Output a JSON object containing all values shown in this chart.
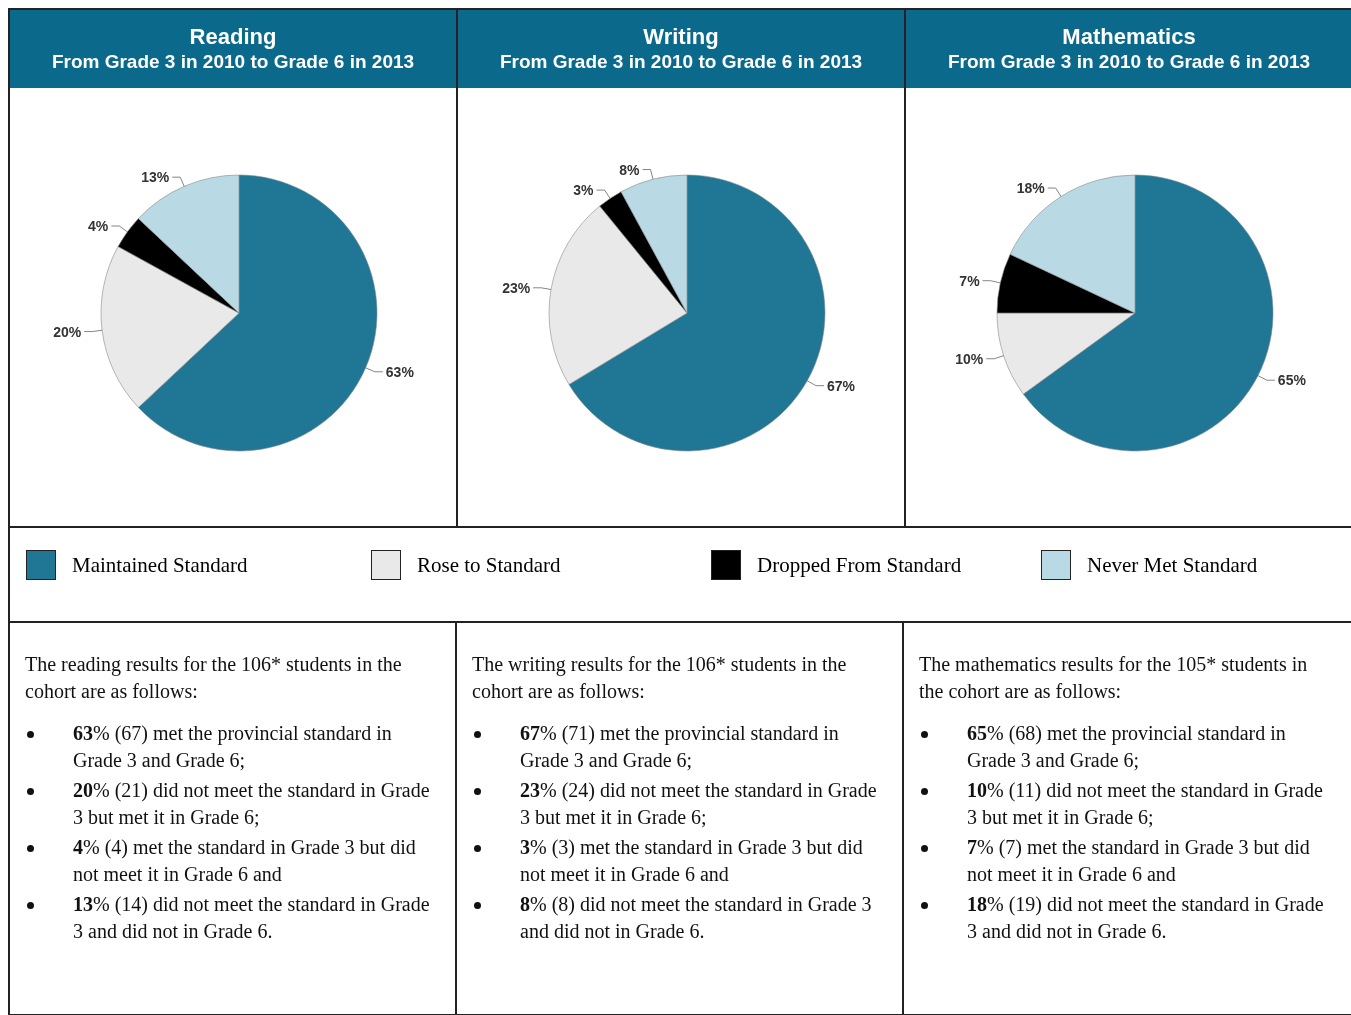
{
  "chart_data": [
    {
      "type": "pie",
      "title": "Reading",
      "subtitle": "From Grade 3 in 2010 to Grade 6 in 2013",
      "categories": [
        "Maintained Standard",
        "Rose to Standard",
        "Dropped From Standard",
        "Never Met Standard"
      ],
      "values": [
        63,
        20,
        4,
        13
      ],
      "value_labels": [
        "63%",
        "20%",
        "4%",
        "13%"
      ],
      "colors": [
        "#1f7695",
        "#e9e9e9",
        "#000000",
        "#b9d9e5"
      ],
      "legend": "bottom"
    },
    {
      "type": "pie",
      "title": "Writing",
      "subtitle": "From Grade 3 in 2010 to Grade 6 in 2013",
      "categories": [
        null,
        null,
        null,
        null
      ],
      "values": [
        67,
        23,
        3,
        8
      ],
      "value_labels": [
        "67%",
        "23%",
        "3%",
        "8%"
      ],
      "colors": [
        "#1f7695",
        "#e9e9e9",
        "#000000",
        "#b9d9e5"
      ]
    },
    {
      "type": "pie",
      "title": "Mathematics",
      "subtitle": "From Grade 3 in 2010 to Grade 6 in 2013",
      "categories": [
        null,
        null,
        null,
        null
      ],
      "values": [
        65,
        10,
        7,
        18
      ],
      "value_labels": [
        "65%",
        "10%",
        "7%",
        "18%"
      ],
      "colors": [
        "#1f7695",
        "#e9e9e9",
        "#000000",
        "#b9d9e5"
      ]
    },
    {
      "type": "other",
      "annotations": [
        "The reading results for the 106* students in the cohort are as follows:",
        "63% (67) met the provincial standard in Grade 3 and Grade 6;",
        "20% (21) did not meet the standard in Grade 3 but met it in Grade 6;",
        "4% (4) met the standard in Grade 3 but did not meet it in Grade 6 and",
        "13% (14) did not meet the standard in Grade 3 and did not in Grade 6."
      ]
    },
    {
      "type": "other",
      "annotations": [
        "The writing results for the 106* students in the cohort are as follows:",
        "67% (71) met the provincial standard in Grade 3 and Grade 6;",
        "23% (24) did not meet the standard in Grade 3 but met it in Grade 6;",
        "3% (3) met the standard in Grade 3 but did not meet it in Grade 6 and",
        "8% (8) did not meet the standard in Grade 3 and did not in Grade 6."
      ]
    },
    {
      "type": "other",
      "annotations": [
        "The mathematics results for the 105* students in the cohort are as follows:",
        "65% (68) met the provincial standard in Grade 3 and Grade 6;",
        "10% (11) did not meet the standard in Grade 3 but met it in Grade 6;",
        "7% (7) met the standard in Grade 3 but did not meet it in Grade 6 and",
        "18% (19) did not meet the standard in Grade 3 and did not in Grade 6."
      ]
    }
  ]
}
